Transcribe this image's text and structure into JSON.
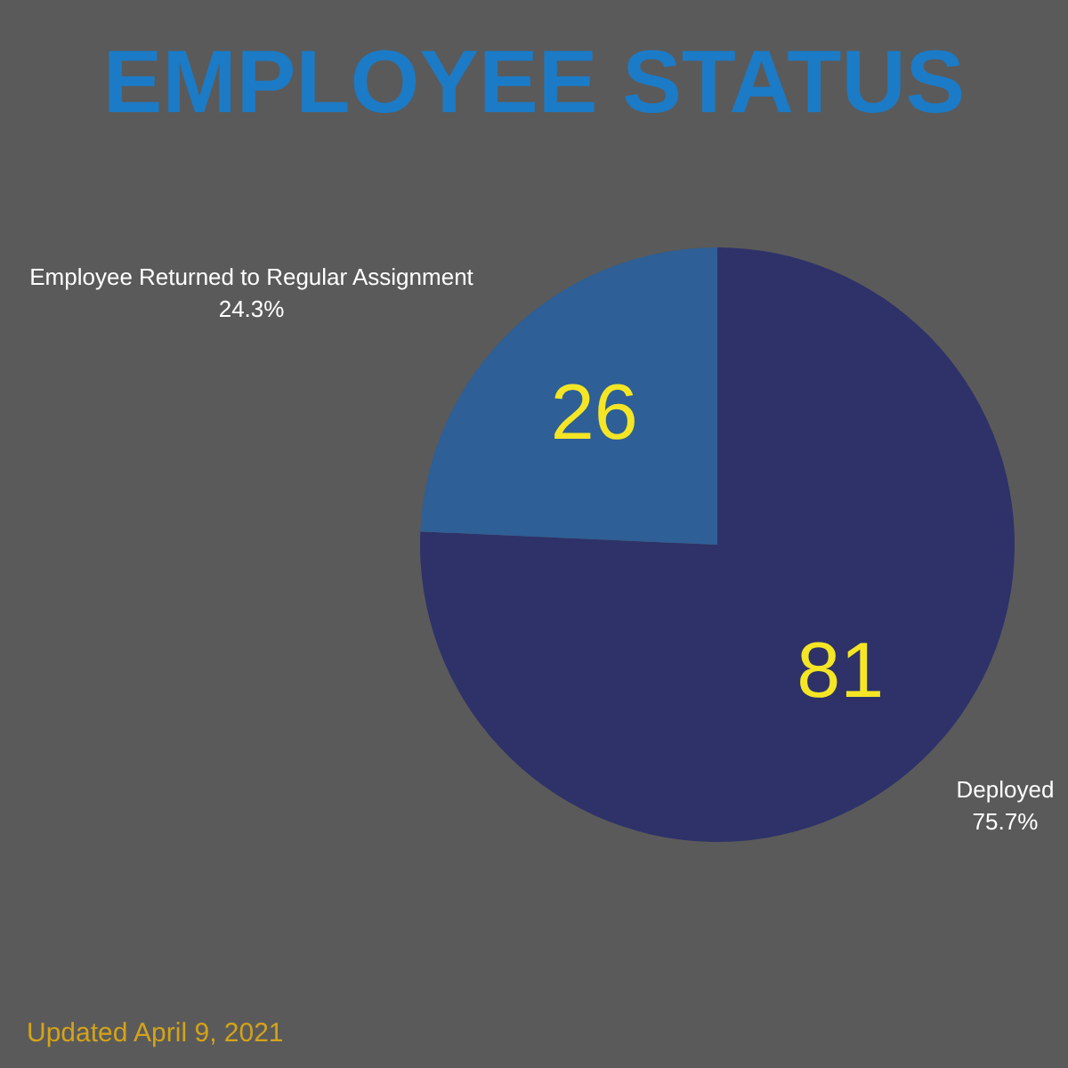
{
  "chart_data": {
    "type": "pie",
    "title": "EMPLOYEE STATUS",
    "categories": [
      "Deployed",
      "Employee Returned to Regular Assignment"
    ],
    "values": [
      81,
      26
    ],
    "colors": [
      "#2e3269",
      "#2e5f96"
    ],
    "data_labels": true,
    "annotations": [
      {
        "text": "75.7%",
        "x": "Deployed"
      },
      {
        "text": "24.3%",
        "x": "Employee Returned to Regular Assignment"
      },
      "Updated April 9, 2021"
    ]
  }
}
